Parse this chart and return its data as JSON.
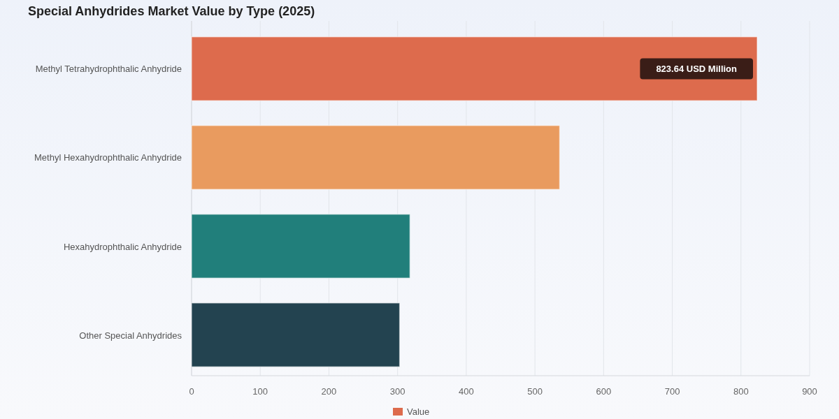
{
  "chart_data": {
    "type": "bar",
    "title": "Special Anhydrides Market Value by Type (2025)",
    "orientation": "horizontal",
    "categories": [
      "Methyl Tetrahydrophthalic Anhydride",
      "Methyl Hexahydrophthalic Anhydride",
      "Hexahydrophthalic Anhydride",
      "Other Special Anhydrides"
    ],
    "series": [
      {
        "name": "Value",
        "color": "#dd6b4d",
        "colors": [
          "#dd6b4d",
          "#e99b5f",
          "#217f7b",
          "#234350"
        ],
        "values": [
          823.64,
          536,
          318,
          303
        ],
        "value_labels": [
          "823.64 USD Million",
          null,
          null,
          null
        ]
      }
    ],
    "xlim": [
      0,
      900
    ],
    "xticks": [
      0,
      100,
      200,
      300,
      400,
      500,
      600,
      700,
      800,
      900
    ],
    "grid": "x",
    "legend": "bottom"
  }
}
